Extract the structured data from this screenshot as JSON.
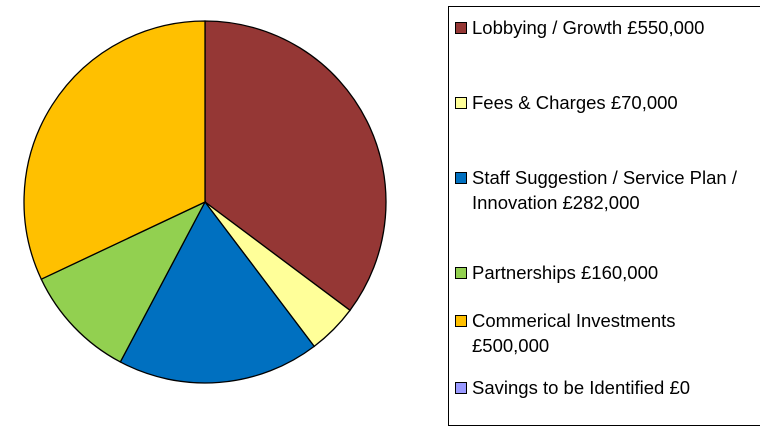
{
  "chart_data": {
    "type": "pie",
    "categories": [
      "Lobbying / Growth",
      "Fees & Charges",
      "Staff Suggestion / Service Plan / Innovation",
      "Partnerships",
      "Commerical Investments",
      "Savings to be Identified"
    ],
    "values": [
      550000,
      70000,
      282000,
      160000,
      500000,
      0
    ],
    "value_labels": [
      "£550,000",
      "£70,000",
      "£282,000",
      "£160,000",
      "£500,000",
      "£0"
    ],
    "colors": [
      "#953735",
      "#ffff99",
      "#0070c0",
      "#92d050",
      "#ffc000",
      "#9999ff"
    ],
    "legend": "right"
  }
}
